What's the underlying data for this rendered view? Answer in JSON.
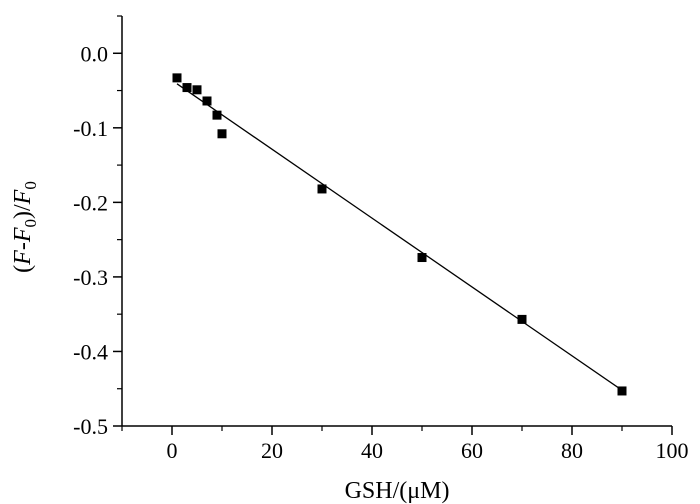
{
  "chart_data": {
    "type": "scatter",
    "title": "",
    "xlabel": "GSH/(μM)",
    "ylabel": {
      "parts": [
        {
          "text": "(",
          "style": "normal"
        },
        {
          "text": "F",
          "style": "italic"
        },
        {
          "text": "-",
          "style": "normal"
        },
        {
          "text": "F",
          "style": "italic"
        },
        {
          "text": "0",
          "style": "sub"
        },
        {
          "text": ")/",
          "style": "normal"
        },
        {
          "text": "F",
          "style": "italic"
        },
        {
          "text": "0",
          "style": "sub"
        }
      ]
    },
    "xlim": [
      -10,
      100
    ],
    "ylim": [
      -0.5,
      0.05
    ],
    "x_ticks": [
      0,
      20,
      40,
      60,
      80,
      100
    ],
    "x_tick_labels": [
      "0",
      "20",
      "40",
      "60",
      "80",
      "100"
    ],
    "y_ticks": [
      0.0,
      -0.1,
      -0.2,
      -0.3,
      -0.4,
      -0.5
    ],
    "y_tick_labels": [
      "0.0",
      "-0.1",
      "-0.2",
      "-0.3",
      "-0.4",
      "-0.5"
    ],
    "grid": false,
    "legend": "none",
    "series": [
      {
        "marker": "square",
        "color": "#000000",
        "x": [
          1,
          3,
          5,
          7,
          9,
          10,
          30,
          50,
          70,
          90
        ],
        "y": [
          -0.033,
          -0.046,
          -0.049,
          -0.064,
          -0.083,
          -0.108,
          -0.182,
          -0.274,
          -0.357,
          -0.453
        ]
      }
    ],
    "fit_line": {
      "color": "#000000",
      "x": [
        1,
        90
      ],
      "y": [
        -0.041,
        -0.452
      ]
    }
  }
}
